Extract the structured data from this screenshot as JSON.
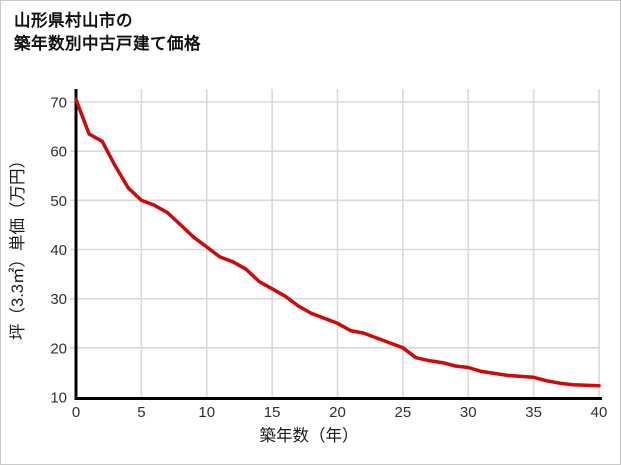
{
  "card": {
    "title_lines": [
      "山形県村山市の",
      "築年数別中古戸建て価格"
    ]
  },
  "chart_data": {
    "type": "line",
    "title": "山形県村山市の築年数別中古戸建て価格",
    "xlabel": "築年数（年）",
    "ylabel": "坪（3.3㎡）単価（万円）",
    "x": [
      0,
      1,
      2,
      3,
      4,
      5,
      6,
      7,
      8,
      9,
      10,
      11,
      12,
      13,
      14,
      15,
      16,
      17,
      18,
      19,
      20,
      21,
      22,
      23,
      24,
      25,
      26,
      27,
      28,
      29,
      30,
      31,
      32,
      33,
      34,
      35,
      36,
      37,
      38,
      39,
      40
    ],
    "values": [
      70.5,
      63.5,
      62,
      57,
      52.5,
      50,
      49,
      47.5,
      45,
      42.5,
      40.5,
      38.5,
      37.5,
      36,
      33.5,
      32,
      30.5,
      28.5,
      27,
      26,
      25,
      23.5,
      23,
      22,
      21,
      20,
      18,
      17.4,
      17,
      16.3,
      16,
      15.2,
      14.8,
      14.4,
      14.2,
      14,
      13.3,
      12.8,
      12.5,
      12.4,
      12.3
    ],
    "xlim": [
      0,
      40
    ],
    "ylim": [
      10,
      72
    ],
    "x_ticks": [
      0,
      5,
      10,
      15,
      20,
      25,
      30,
      35,
      40
    ],
    "y_ticks": [
      10,
      20,
      30,
      40,
      50,
      60,
      70
    ],
    "grid": true,
    "legend": "none",
    "line_color": "#cc0a0a",
    "grid_color": "#d9d9d9",
    "axis_color": "#000000",
    "tick_label_color": "#303030"
  }
}
